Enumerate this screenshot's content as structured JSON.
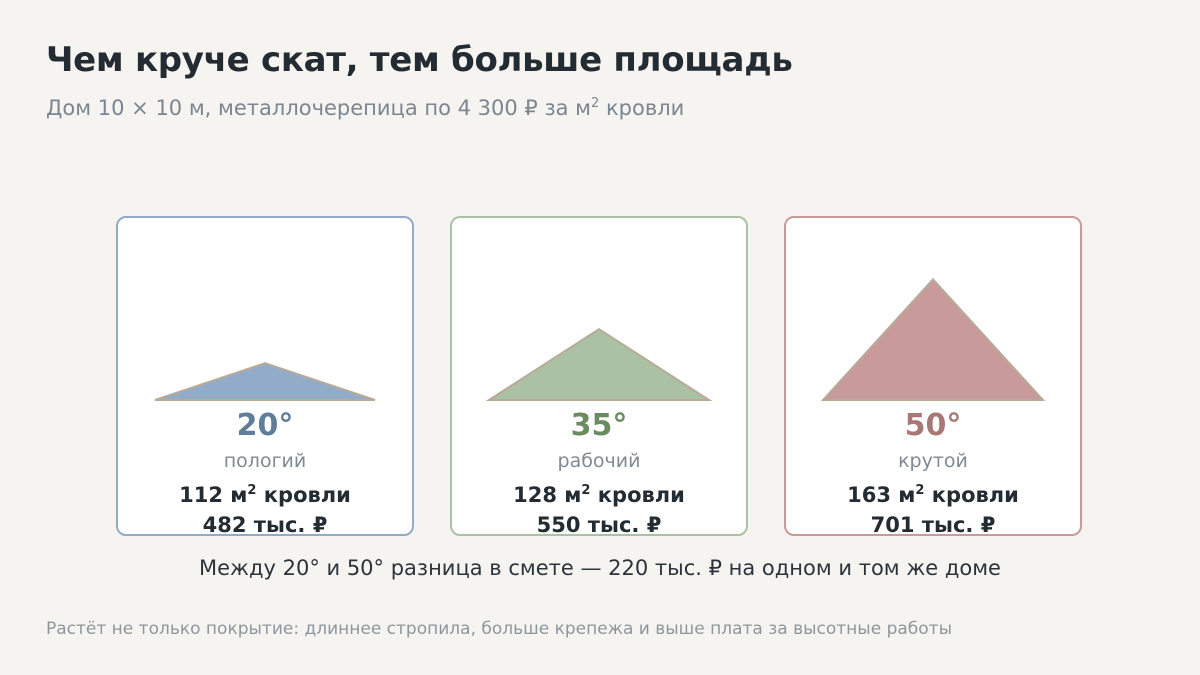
{
  "header": {
    "title": "Чем круче скат, тем больше площадь",
    "subtitle_text": "Дом 10 × 10 м, металлочерепица по 4 300 ₽ за м",
    "subtitle_sup": "2",
    "subtitle_tail": " кровли"
  },
  "cards": [
    {
      "angle_value": 20,
      "angle_label": "20°",
      "kind": "пологий",
      "area_value": "112 м",
      "area_sup": "2",
      "area_tail": " кровли",
      "cost": "482 тыс. ₽",
      "fill_color": "#92abc9",
      "border_color": "#92abc9",
      "accent_color": "#627d98"
    },
    {
      "angle_value": 35,
      "angle_label": "35°",
      "kind": "рабочий",
      "area_value": "128 м",
      "area_sup": "2",
      "area_tail": " кровли",
      "cost": "550 тыс. ₽",
      "fill_color": "#abc1a3",
      "border_color": "#a9c3a2",
      "accent_color": "#6b8b61"
    },
    {
      "angle_value": 50,
      "angle_label": "50°",
      "kind": "крутой",
      "area_value": "163 м",
      "area_sup": "2",
      "area_tail": " кровли",
      "cost": "701 тыс. ₽",
      "fill_color": "#c89b9a",
      "border_color": "#c89b9a",
      "accent_color": "#a87876"
    }
  ],
  "summary": "Между 20° и 50° разница в смете — 220 тыс. ₽ на одном и том же доме",
  "footnote": "Растёт не только покрытие: длиннее стропила, больше крепежа и выше плата за высотные работы",
  "roof_outline_color": "#b8aa99"
}
